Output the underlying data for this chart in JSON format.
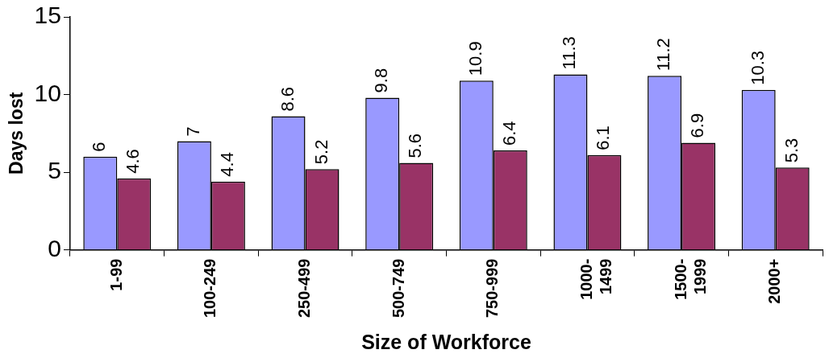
{
  "chart_data": {
    "type": "bar",
    "xlabel": "Size of Workforce",
    "ylabel": "Days lost",
    "categories": [
      "1-99",
      "100-249",
      "250-499",
      "500-749",
      "750-999",
      "1000-1499",
      "1500-1999",
      "2000+"
    ],
    "series": [
      {
        "color": "#9999ff",
        "values": [
          6,
          7,
          8.6,
          9.8,
          10.9,
          11.3,
          11.2,
          10.3
        ]
      },
      {
        "color": "#993366",
        "values": [
          4.6,
          4.4,
          5.2,
          5.6,
          6.4,
          6.1,
          6.9,
          5.3
        ]
      }
    ],
    "ylim": [
      0,
      15
    ],
    "yticks": [
      0,
      5,
      10,
      15
    ],
    "grid": false,
    "legend": false,
    "data_labels": true
  }
}
